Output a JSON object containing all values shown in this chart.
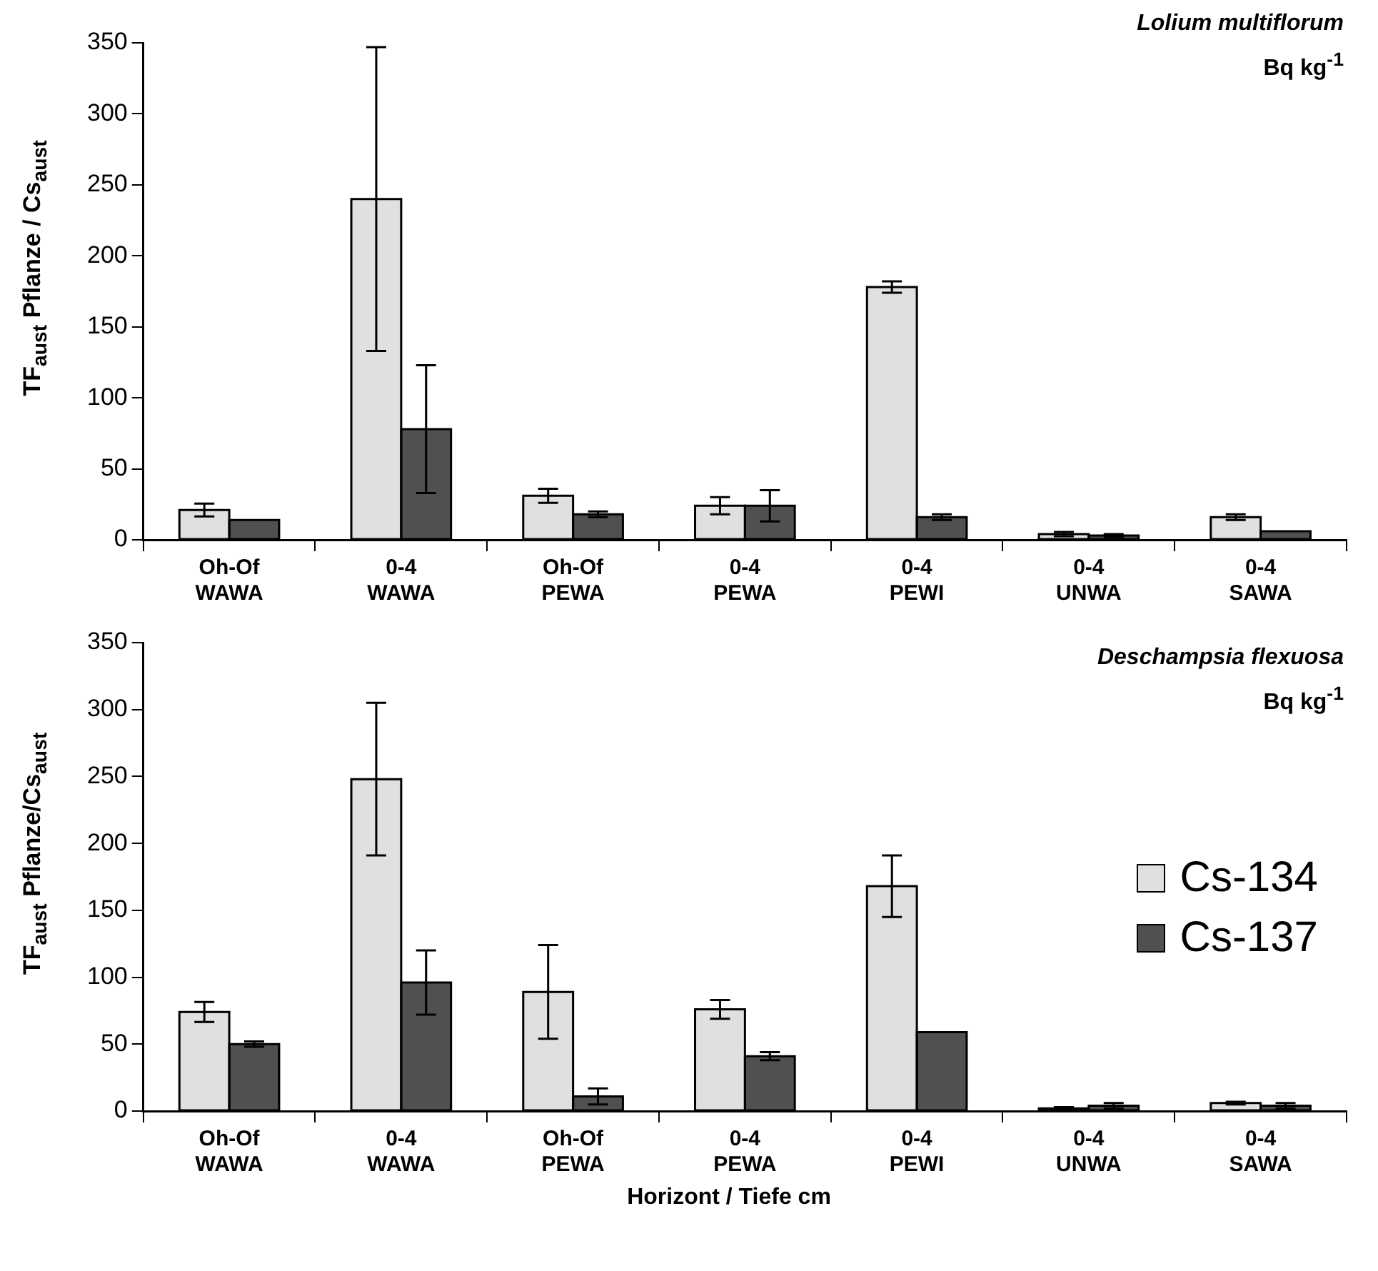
{
  "chart_data": [
    {
      "type": "bar",
      "title": "Lolium multiflorum",
      "subtitle": "Bq kg$^{-1}$",
      "ylabel": "TF$_{aust}$ Pflanze / Cs$_{aust}$",
      "categories": [
        "Oh-Of\nWAWA",
        "0-4\nWAWA",
        "Oh-Of\nPEWA",
        "0-4\nPEWA",
        "0-4\nPEWI",
        "0-4\nUNWA",
        "0-4\nSAWA"
      ],
      "series": [
        {
          "color": "#e0e0e0",
          "values": [
            21,
            240,
            31,
            24,
            178,
            4,
            16
          ],
          "errors": [
            4.5,
            107,
            5,
            6,
            4,
            1.5,
            2
          ]
        },
        {
          "color": "#505050",
          "values": [
            14,
            78,
            18,
            24,
            16,
            3,
            6
          ],
          "errors": [
            null,
            45,
            2,
            11,
            2,
            1,
            null
          ]
        }
      ],
      "ylim": [
        0,
        350
      ],
      "yticks": [
        0,
        50,
        100,
        150,
        200,
        250,
        300,
        350
      ],
      "grid": false,
      "legend": false
    },
    {
      "type": "bar",
      "title": "Deschampsia flexuosa",
      "subtitle": "Bq kg$^{-1}$",
      "ylabel": "TF$_{aust}$ Pflanze/Cs$_{aust}$",
      "xlabel": "Horizont / Tiefe cm",
      "categories": [
        "Oh-Of\nWAWA",
        "0-4\nWAWA",
        "Oh-Of\nPEWA",
        "0-4\nPEWA",
        "0-4\nPEWI",
        "0-4\nUNWA",
        "0-4\nSAWA"
      ],
      "series": [
        {
          "name": "Cs-134",
          "color": "#e0e0e0",
          "values": [
            74,
            248,
            89,
            76,
            168,
            2,
            6
          ],
          "errors": [
            7.5,
            57,
            35,
            7,
            23,
            1,
            1
          ]
        },
        {
          "name": "Cs-137",
          "color": "#505050",
          "values": [
            50,
            96,
            11,
            41,
            59,
            4,
            4
          ],
          "errors": [
            2,
            24,
            6,
            3,
            null,
            2,
            2
          ]
        }
      ],
      "ylim": [
        0,
        350
      ],
      "yticks": [
        0,
        50,
        100,
        150,
        200,
        250,
        300,
        350
      ],
      "grid": false,
      "legend": "right"
    }
  ]
}
